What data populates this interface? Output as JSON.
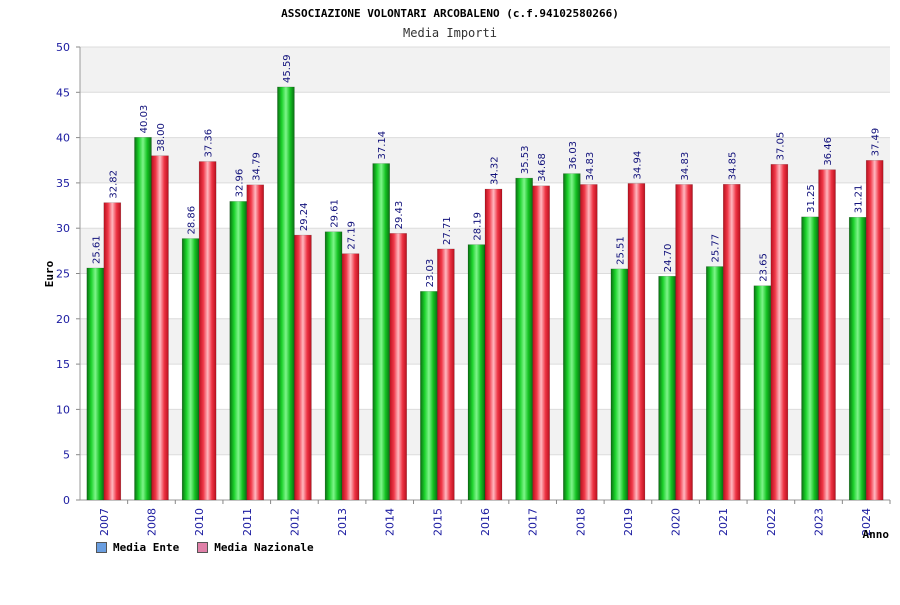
{
  "header": {
    "title": "ASSOCIAZIONE VOLONTARI ARCOBALENO (c.f.94102580266)",
    "subtitle": "Media Importi"
  },
  "chart_data": {
    "type": "bar",
    "title": "ASSOCIAZIONE VOLONTARI ARCOBALENO (c.f.94102580266)",
    "subtitle": "Media Importi",
    "xlabel": "Anno",
    "ylabel": "Euro",
    "ylim": [
      0,
      50
    ],
    "yticks": [
      0,
      5,
      10,
      15,
      20,
      25,
      30,
      35,
      40,
      45,
      50
    ],
    "grid": true,
    "legend_position": "bottom-left",
    "categories": [
      "2007",
      "2008",
      "2010",
      "2011",
      "2012",
      "2013",
      "2014",
      "2015",
      "2016",
      "2017",
      "2018",
      "2019",
      "2020",
      "2021",
      "2022",
      "2023",
      "2024"
    ],
    "series": [
      {
        "name": "Media Ente",
        "color": "#12b81e",
        "values": [
          25.61,
          40.03,
          28.86,
          32.96,
          45.59,
          29.61,
          37.14,
          23.03,
          28.19,
          35.53,
          36.03,
          25.51,
          24.7,
          25.77,
          23.65,
          31.25,
          31.21
        ],
        "labels": [
          "25.61",
          "40.03",
          "28.86",
          "32.96",
          "45.59",
          "29.61",
          "37.14",
          "23.03",
          "28.19",
          "35.53",
          "36.03",
          "25.51",
          "24.70",
          "25.77",
          "23.65",
          "31.25",
          "31.21"
        ]
      },
      {
        "name": "Media Nazionale",
        "color": "#e8303e",
        "values": [
          32.82,
          38.0,
          37.36,
          34.79,
          29.24,
          27.19,
          29.43,
          27.71,
          34.32,
          34.68,
          34.83,
          34.94,
          34.83,
          34.85,
          37.05,
          36.46,
          37.49
        ],
        "labels": [
          "32.82",
          "38.00",
          "37.36",
          "34.79",
          "29.24",
          "27.19",
          "29.43",
          "27.71",
          "34.32",
          "34.68",
          "34.83",
          "34.94",
          "34.83",
          "34.85",
          "37.05",
          "36.46",
          "37.49"
        ]
      }
    ]
  },
  "legend": {
    "items": [
      {
        "label": "Media Ente",
        "color": "#6a9ee0"
      },
      {
        "label": "Media Nazionale",
        "color": "#e080a8"
      }
    ]
  },
  "colors": {
    "axis_text": "#1a1aa0",
    "value_label": "#10107a",
    "band_light": "#f2f2f2",
    "gridline": "#dcdcdc"
  }
}
